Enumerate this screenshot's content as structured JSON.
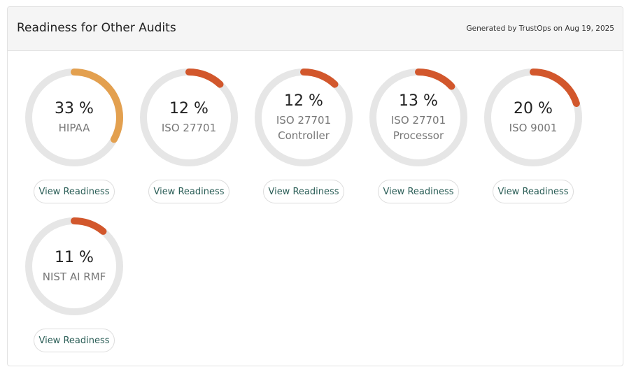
{
  "header": {
    "title": "Readiness for Other Audits",
    "generated": "Generated by TrustOps on Aug 19, 2025"
  },
  "items": [
    {
      "value": 33,
      "value_label": "33 %",
      "label": "HIPAA",
      "color": "#e3a04f",
      "button": "View Readiness"
    },
    {
      "value": 12,
      "value_label": "12 %",
      "label": "ISO 27701",
      "color": "#d2572c",
      "button": "View Readiness"
    },
    {
      "value": 12,
      "value_label": "12 %",
      "label": "ISO 27701 Controller",
      "color": "#d2572c",
      "button": "View Readiness"
    },
    {
      "value": 13,
      "value_label": "13 %",
      "label": "ISO 27701 Processor",
      "color": "#d2572c",
      "button": "View Readiness"
    },
    {
      "value": 20,
      "value_label": "20 %",
      "label": "ISO 9001",
      "color": "#d2572c",
      "button": "View Readiness"
    },
    {
      "value": 11,
      "value_label": "11 %",
      "label": "NIST AI RMF",
      "color": "#d2572c",
      "button": "View Readiness"
    }
  ]
}
